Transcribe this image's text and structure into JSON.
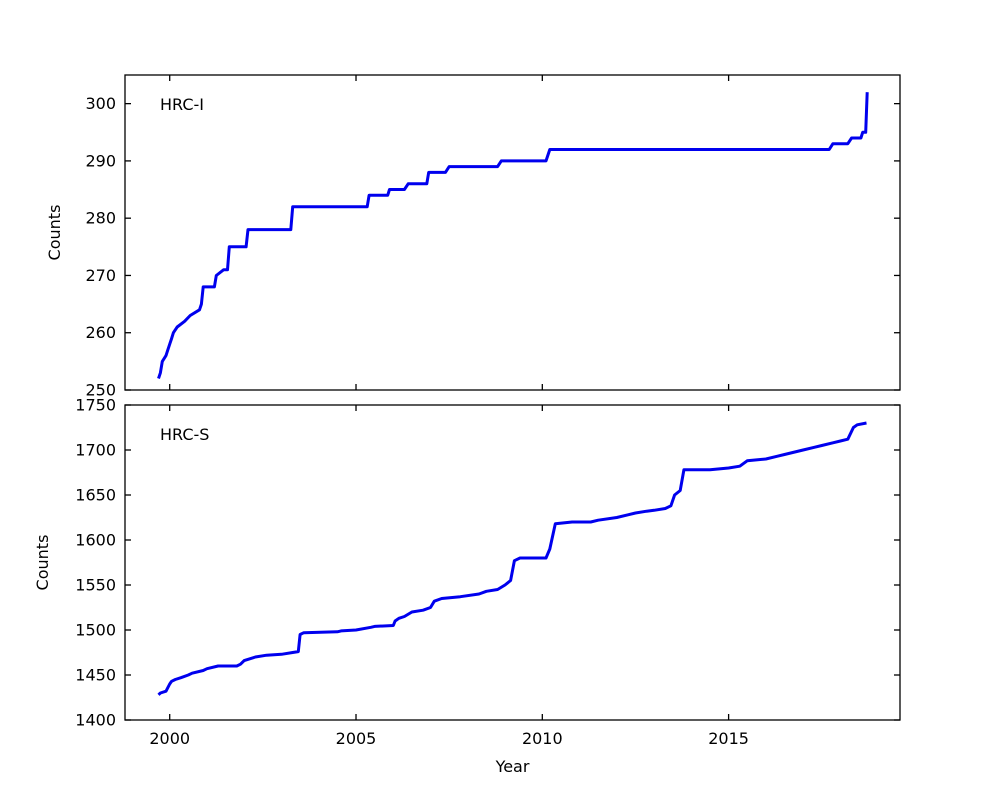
{
  "figure": {
    "background": "#ffffff",
    "frame_color": "#000000",
    "line_color": "#0000ee"
  },
  "chart_data": [
    {
      "type": "line",
      "panel": "top",
      "title": "HRC-I",
      "xlabel": "",
      "ylabel": "Counts",
      "xlim": [
        1998.8,
        2019.6
      ],
      "ylim": [
        250,
        305
      ],
      "xticks": [
        2000,
        2005,
        2010,
        2015
      ],
      "show_xtick_labels": false,
      "yticks": [
        250,
        260,
        270,
        280,
        290,
        300
      ],
      "grid": false,
      "legend": "none",
      "series": [
        {
          "name": "HRC-I counts",
          "color": "#0000ee",
          "line_width": 3,
          "x": [
            1999.7,
            1999.75,
            1999.8,
            1999.9,
            1999.95,
            2000.0,
            2000.05,
            2000.1,
            2000.2,
            2000.4,
            2000.55,
            2000.8,
            2000.85,
            2000.9,
            2001.2,
            2001.25,
            2001.45,
            2001.55,
            2001.6,
            2002.05,
            2002.1,
            2003.25,
            2003.3,
            2005.3,
            2005.35,
            2005.85,
            2005.9,
            2006.3,
            2006.4,
            2006.9,
            2006.95,
            2007.4,
            2007.5,
            2008.8,
            2008.9,
            2010.1,
            2010.2,
            2017.7,
            2017.8,
            2018.2,
            2018.3,
            2018.55,
            2018.6,
            2018.68,
            2018.72
          ],
          "y": [
            252,
            253,
            255,
            256,
            257,
            258,
            259,
            260,
            261,
            262,
            263,
            264,
            265,
            268,
            268,
            270,
            271,
            271,
            275,
            275,
            278,
            278,
            282,
            282,
            284,
            284,
            285,
            285,
            286,
            286,
            288,
            288,
            289,
            289,
            290,
            290,
            292,
            292,
            293,
            293,
            294,
            294,
            295,
            295,
            302
          ]
        }
      ]
    },
    {
      "type": "line",
      "panel": "bottom",
      "title": "HRC-S",
      "xlabel": "Year",
      "ylabel": "Counts",
      "xlim": [
        1998.8,
        2019.6
      ],
      "ylim": [
        1400,
        1750
      ],
      "xticks": [
        2000,
        2005,
        2010,
        2015
      ],
      "show_xtick_labels": true,
      "yticks": [
        1400,
        1450,
        1500,
        1550,
        1600,
        1650,
        1700,
        1750
      ],
      "grid": false,
      "legend": "none",
      "series": [
        {
          "name": "HRC-S counts",
          "color": "#0000ee",
          "line_width": 3,
          "x": [
            1999.7,
            1999.75,
            1999.9,
            2000.0,
            2000.05,
            2000.15,
            2000.3,
            2000.5,
            2000.6,
            2000.9,
            2001.0,
            2001.3,
            2001.8,
            2001.9,
            2002.0,
            2002.3,
            2002.6,
            2003.0,
            2003.3,
            2003.45,
            2003.5,
            2003.6,
            2004.5,
            2004.6,
            2005.0,
            2005.4,
            2005.5,
            2006.0,
            2006.05,
            2006.15,
            2006.3,
            2006.5,
            2006.8,
            2007.0,
            2007.1,
            2007.3,
            2007.8,
            2008.3,
            2008.5,
            2008.8,
            2009.0,
            2009.15,
            2009.25,
            2009.4,
            2010.1,
            2010.2,
            2010.35,
            2010.8,
            2011.3,
            2011.5,
            2012.0,
            2012.3,
            2012.5,
            2012.8,
            2013.0,
            2013.3,
            2013.45,
            2013.55,
            2013.7,
            2013.8,
            2014.5,
            2015.0,
            2015.3,
            2015.5,
            2016.0,
            2016.3,
            2016.5,
            2017.0,
            2017.3,
            2017.5,
            2017.8,
            2018.0,
            2018.2,
            2018.35,
            2018.45,
            2018.7
          ],
          "y": [
            1428,
            1430,
            1432,
            1440,
            1443,
            1445,
            1447,
            1450,
            1452,
            1455,
            1457,
            1460,
            1460,
            1462,
            1466,
            1470,
            1472,
            1473,
            1475,
            1476,
            1495,
            1497,
            1498,
            1499,
            1500,
            1503,
            1504,
            1505,
            1510,
            1513,
            1515,
            1520,
            1522,
            1525,
            1532,
            1535,
            1537,
            1540,
            1543,
            1545,
            1550,
            1555,
            1577,
            1580,
            1580,
            1590,
            1618,
            1620,
            1620,
            1622,
            1625,
            1628,
            1630,
            1632,
            1633,
            1635,
            1638,
            1650,
            1655,
            1678,
            1678,
            1680,
            1682,
            1688,
            1690,
            1693,
            1695,
            1700,
            1703,
            1705,
            1708,
            1710,
            1712,
            1725,
            1728,
            1730
          ]
        }
      ]
    }
  ]
}
